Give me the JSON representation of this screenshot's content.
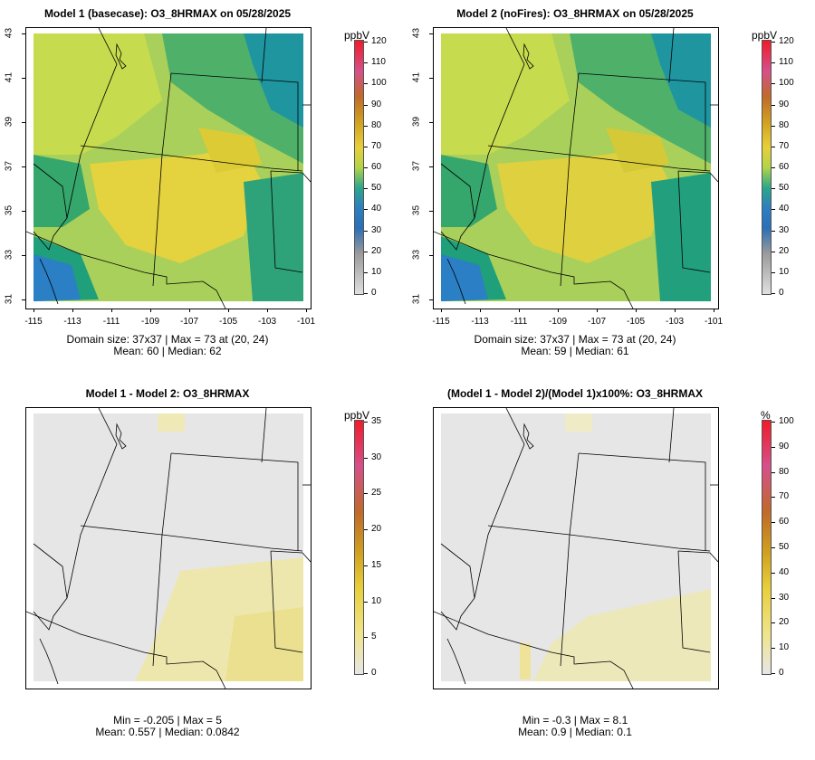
{
  "panels": [
    {
      "title": "Model 1 (basecase): O3_8HRMAX on 05/28/2025",
      "unit": "ppbV",
      "colorbar_ticks": [
        "120",
        "110",
        "100",
        "90",
        "80",
        "70",
        "60",
        "50",
        "40",
        "30",
        "20",
        "10",
        "0"
      ],
      "stats_line1": "Domain size: 37x37 | Max = 73 at (20, 24)",
      "stats_line2": "Mean: 60 |  Median: 62",
      "field_type": "absolute"
    },
    {
      "title": "Model 2 (noFires): O3_8HRMAX on 05/28/2025",
      "unit": "ppbV",
      "colorbar_ticks": [
        "120",
        "110",
        "100",
        "90",
        "80",
        "70",
        "60",
        "50",
        "40",
        "30",
        "20",
        "10",
        "0"
      ],
      "stats_line1": "Domain size: 37x37 | Max = 73 at (20, 24)",
      "stats_line2": "Mean: 59 |  Median: 61",
      "field_type": "absolute"
    },
    {
      "title": "Model 1 - Model 2: O3_8HRMAX",
      "unit": "ppbV",
      "colorbar_ticks": [
        "35",
        "30",
        "25",
        "20",
        "15",
        "10",
        "5",
        "0"
      ],
      "stats_line1": "Min = -0.205 | Max = 5",
      "stats_line2": "Mean: 0.557 |  Median: 0.0842",
      "field_type": "difference"
    },
    {
      "title": "(Model 1 - Model 2)/(Model 1)x100%: O3_8HRMAX",
      "unit": "%",
      "colorbar_ticks": [
        "100",
        "90",
        "80",
        "70",
        "60",
        "50",
        "40",
        "30",
        "20",
        "10",
        "0"
      ],
      "stats_line1": "Min = -0.3 | Max = 8.1",
      "stats_line2": "Mean: 0.9 |  Median: 0.1",
      "field_type": "percent"
    }
  ],
  "lat_ticks": [
    "31",
    "33",
    "35",
    "37",
    "39",
    "41",
    "43"
  ],
  "lon_ticks": [
    "-115",
    "-113",
    "-111",
    "-109",
    "-107",
    "-105",
    "-103",
    "-101"
  ],
  "colors": {
    "ozone_high": "#e8cf3a",
    "ozone_mid": "#9ccc45",
    "ozone_low": "#1a9a8a",
    "ozone_verylow": "#2d7fc0",
    "diff_background": "#e6e6e6",
    "diff_tint": "#efe7a0"
  }
}
